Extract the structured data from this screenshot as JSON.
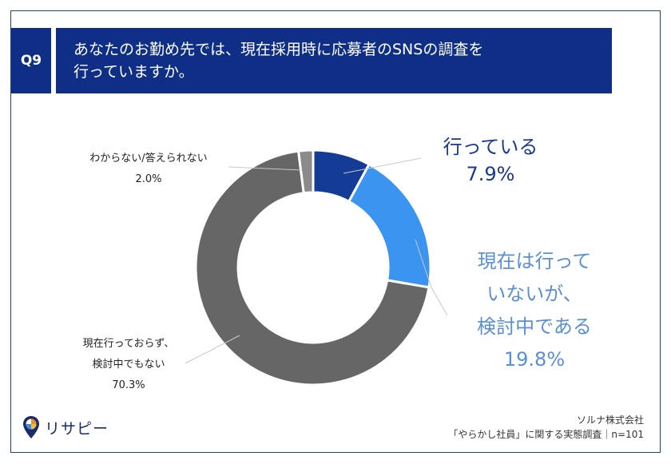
{
  "question": {
    "number": "Q9",
    "lines": [
      "あなたのお勤め先では、現在採用時に応募者のSNSの調査を",
      "行っていますか。"
    ]
  },
  "chart_data": {
    "type": "pie",
    "donut": true,
    "slices": [
      {
        "label": [
          "行っている"
        ],
        "value": 7.9,
        "value_label": "7.9%",
        "color": "#143c96"
      },
      {
        "label": [
          "現在は行って",
          "いないが、",
          "検討中である"
        ],
        "value": 19.8,
        "value_label": "19.8%",
        "color": "#3b94ef"
      },
      {
        "label": [
          "現在行っておらず、",
          "検討中でもない"
        ],
        "value": 70.3,
        "value_label": "70.3%",
        "color": "#666666"
      },
      {
        "label": [
          "わからない/答えられない"
        ],
        "value": 2.0,
        "value_label": "2.0%",
        "color": "#8a8a8a"
      }
    ]
  },
  "footer": {
    "logo_text": "リサピー",
    "source_line1": "ソルナ株式会社",
    "source_line2": "「やらかし社員」に関する実態調査｜n=101"
  },
  "colors": {
    "header_bg": "#0f2f86",
    "label_dark": "#1a3791",
    "label_light": "#5a8fd6"
  }
}
